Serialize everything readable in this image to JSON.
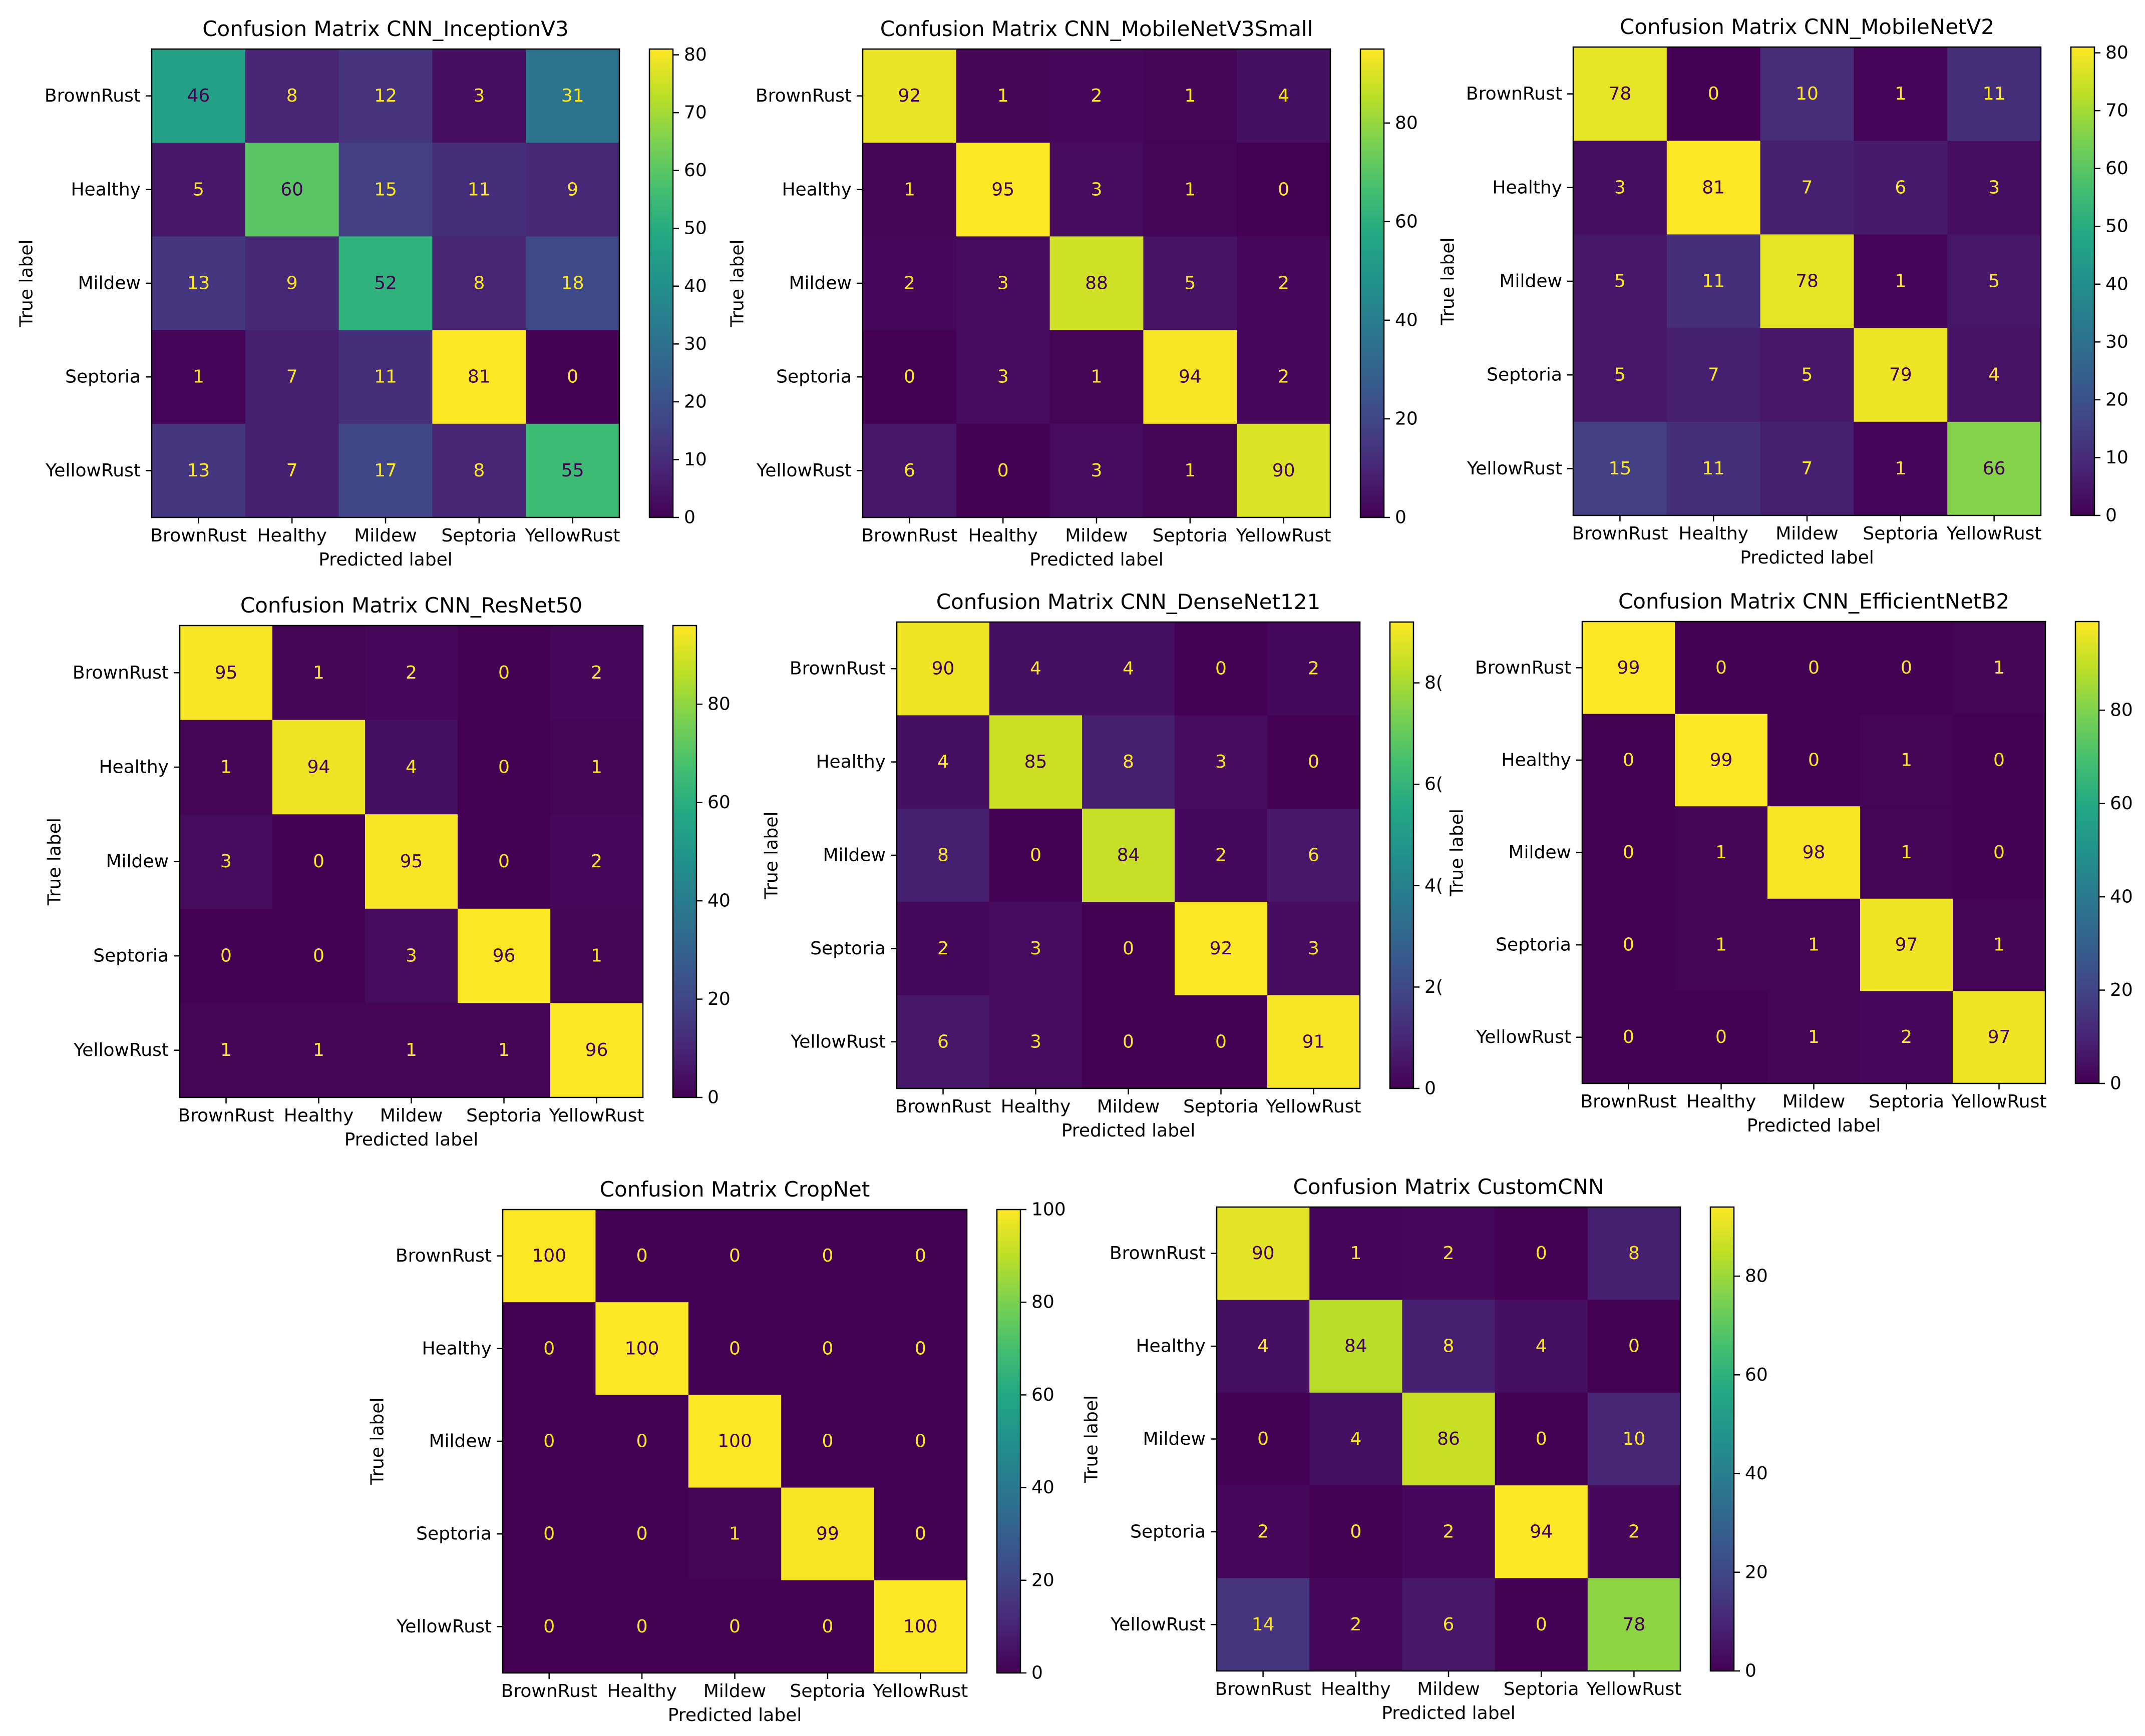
{
  "figure": {
    "class_labels": [
      "BrownRust",
      "Healthy",
      "Mildew",
      "Septoria",
      "YellowRust"
    ],
    "xlabel": "Predicted label",
    "ylabel": "True label"
  },
  "chart_data": [
    {
      "type": "heatmap",
      "title": "Confusion Matrix CNN_InceptionV3",
      "xlabel": "Predicted label",
      "ylabel": "True label",
      "categories": [
        "BrownRust",
        "Healthy",
        "Mildew",
        "Septoria",
        "YellowRust"
      ],
      "matrix": [
        [
          46,
          8,
          12,
          3,
          31
        ],
        [
          5,
          60,
          15,
          11,
          9
        ],
        [
          13,
          9,
          52,
          8,
          18
        ],
        [
          1,
          7,
          11,
          81,
          0
        ],
        [
          13,
          7,
          17,
          8,
          55
        ]
      ],
      "vmin": 0,
      "vmax": 81,
      "colorbar_ticks": [
        0,
        10,
        20,
        30,
        40,
        50,
        60,
        70,
        80
      ],
      "colorbar_tick_labels": [
        "0",
        "10",
        "20",
        "30",
        "40",
        "50",
        "60",
        "70",
        "80"
      ]
    },
    {
      "type": "heatmap",
      "title": "Confusion Matrix CNN_MobileNetV3Small",
      "xlabel": "Predicted label",
      "ylabel": "True label",
      "categories": [
        "BrownRust",
        "Healthy",
        "Mildew",
        "Septoria",
        "YellowRust"
      ],
      "matrix": [
        [
          92,
          1,
          2,
          1,
          4
        ],
        [
          1,
          95,
          3,
          1,
          0
        ],
        [
          2,
          3,
          88,
          5,
          2
        ],
        [
          0,
          3,
          1,
          94,
          2
        ],
        [
          6,
          0,
          3,
          1,
          90
        ]
      ],
      "vmin": 0,
      "vmax": 95,
      "colorbar_ticks": [
        0,
        20,
        40,
        60,
        80
      ],
      "colorbar_tick_labels": [
        "0",
        "20",
        "40",
        "60",
        "80"
      ]
    },
    {
      "type": "heatmap",
      "title": "Confusion Matrix CNN_MobileNetV2",
      "xlabel": "Predicted label",
      "ylabel": "True label",
      "categories": [
        "BrownRust",
        "Healthy",
        "Mildew",
        "Septoria",
        "YellowRust"
      ],
      "matrix": [
        [
          78,
          0,
          10,
          1,
          11
        ],
        [
          3,
          81,
          7,
          6,
          3
        ],
        [
          5,
          11,
          78,
          1,
          5
        ],
        [
          5,
          7,
          5,
          79,
          4
        ],
        [
          15,
          11,
          7,
          1,
          66
        ]
      ],
      "vmin": 0,
      "vmax": 81,
      "colorbar_ticks": [
        0,
        10,
        20,
        30,
        40,
        50,
        60,
        70,
        80
      ],
      "colorbar_tick_labels": [
        "0",
        "10",
        "20",
        "30",
        "40",
        "50",
        "60",
        "70",
        "80"
      ]
    },
    {
      "type": "heatmap",
      "title": "Confusion Matrix CNN_ResNet50",
      "xlabel": "Predicted label",
      "ylabel": "True label",
      "categories": [
        "BrownRust",
        "Healthy",
        "Mildew",
        "Septoria",
        "YellowRust"
      ],
      "matrix": [
        [
          95,
          1,
          2,
          0,
          2
        ],
        [
          1,
          94,
          4,
          0,
          1
        ],
        [
          3,
          0,
          95,
          0,
          2
        ],
        [
          0,
          0,
          3,
          96,
          1
        ],
        [
          1,
          1,
          1,
          1,
          96
        ]
      ],
      "vmin": 0,
      "vmax": 96,
      "colorbar_ticks": [
        0,
        20,
        40,
        60,
        80
      ],
      "colorbar_tick_labels": [
        "0",
        "20",
        "40",
        "60",
        "80"
      ]
    },
    {
      "type": "heatmap",
      "title": "Confusion Matrix CNN_DenseNet121",
      "xlabel": "Predicted label",
      "ylabel": "True label",
      "categories": [
        "BrownRust",
        "Healthy",
        "Mildew",
        "Septoria",
        "YellowRust"
      ],
      "matrix": [
        [
          90,
          4,
          4,
          0,
          2
        ],
        [
          4,
          85,
          8,
          3,
          0
        ],
        [
          8,
          0,
          84,
          2,
          6
        ],
        [
          2,
          3,
          0,
          92,
          3
        ],
        [
          6,
          3,
          0,
          0,
          91
        ]
      ],
      "vmin": 0,
      "vmax": 92,
      "colorbar_ticks": [
        0,
        20,
        40,
        60,
        80
      ],
      "colorbar_tick_labels": [
        "0",
        "2(",
        "4(",
        "6(",
        "8("
      ]
    },
    {
      "type": "heatmap",
      "title": "Confusion Matrix CNN_EfficientNetB2",
      "xlabel": "Predicted label",
      "ylabel": "True label",
      "categories": [
        "BrownRust",
        "Healthy",
        "Mildew",
        "Septoria",
        "YellowRust"
      ],
      "matrix": [
        [
          99,
          0,
          0,
          0,
          1
        ],
        [
          0,
          99,
          0,
          1,
          0
        ],
        [
          0,
          1,
          98,
          1,
          0
        ],
        [
          0,
          1,
          1,
          97,
          1
        ],
        [
          0,
          0,
          1,
          2,
          97
        ]
      ],
      "vmin": 0,
      "vmax": 99,
      "colorbar_ticks": [
        0,
        20,
        40,
        60,
        80
      ],
      "colorbar_tick_labels": [
        "0",
        "20",
        "40",
        "60",
        "80"
      ]
    },
    {
      "type": "heatmap",
      "title": "Confusion Matrix CropNet",
      "xlabel": "Predicted label",
      "ylabel": "True label",
      "categories": [
        "BrownRust",
        "Healthy",
        "Mildew",
        "Septoria",
        "YellowRust"
      ],
      "matrix": [
        [
          100,
          0,
          0,
          0,
          0
        ],
        [
          0,
          100,
          0,
          0,
          0
        ],
        [
          0,
          0,
          100,
          0,
          0
        ],
        [
          0,
          0,
          1,
          99,
          0
        ],
        [
          0,
          0,
          0,
          0,
          100
        ]
      ],
      "vmin": 0,
      "vmax": 100,
      "colorbar_ticks": [
        0,
        20,
        40,
        60,
        80,
        100
      ],
      "colorbar_tick_labels": [
        "0",
        "20",
        "40",
        "60",
        "80",
        "100"
      ]
    },
    {
      "type": "heatmap",
      "title": "Confusion Matrix CustomCNN",
      "xlabel": "Predicted label",
      "ylabel": "True label",
      "categories": [
        "BrownRust",
        "Healthy",
        "Mildew",
        "Septoria",
        "YellowRust"
      ],
      "matrix": [
        [
          90,
          1,
          2,
          0,
          8
        ],
        [
          4,
          84,
          8,
          4,
          0
        ],
        [
          0,
          4,
          86,
          0,
          10
        ],
        [
          2,
          0,
          2,
          94,
          2
        ],
        [
          14,
          2,
          6,
          0,
          78
        ]
      ],
      "vmin": 0,
      "vmax": 94,
      "colorbar_ticks": [
        0,
        20,
        40,
        60,
        80
      ],
      "colorbar_tick_labels": [
        "0",
        "20",
        "40",
        "60",
        "80"
      ]
    }
  ]
}
